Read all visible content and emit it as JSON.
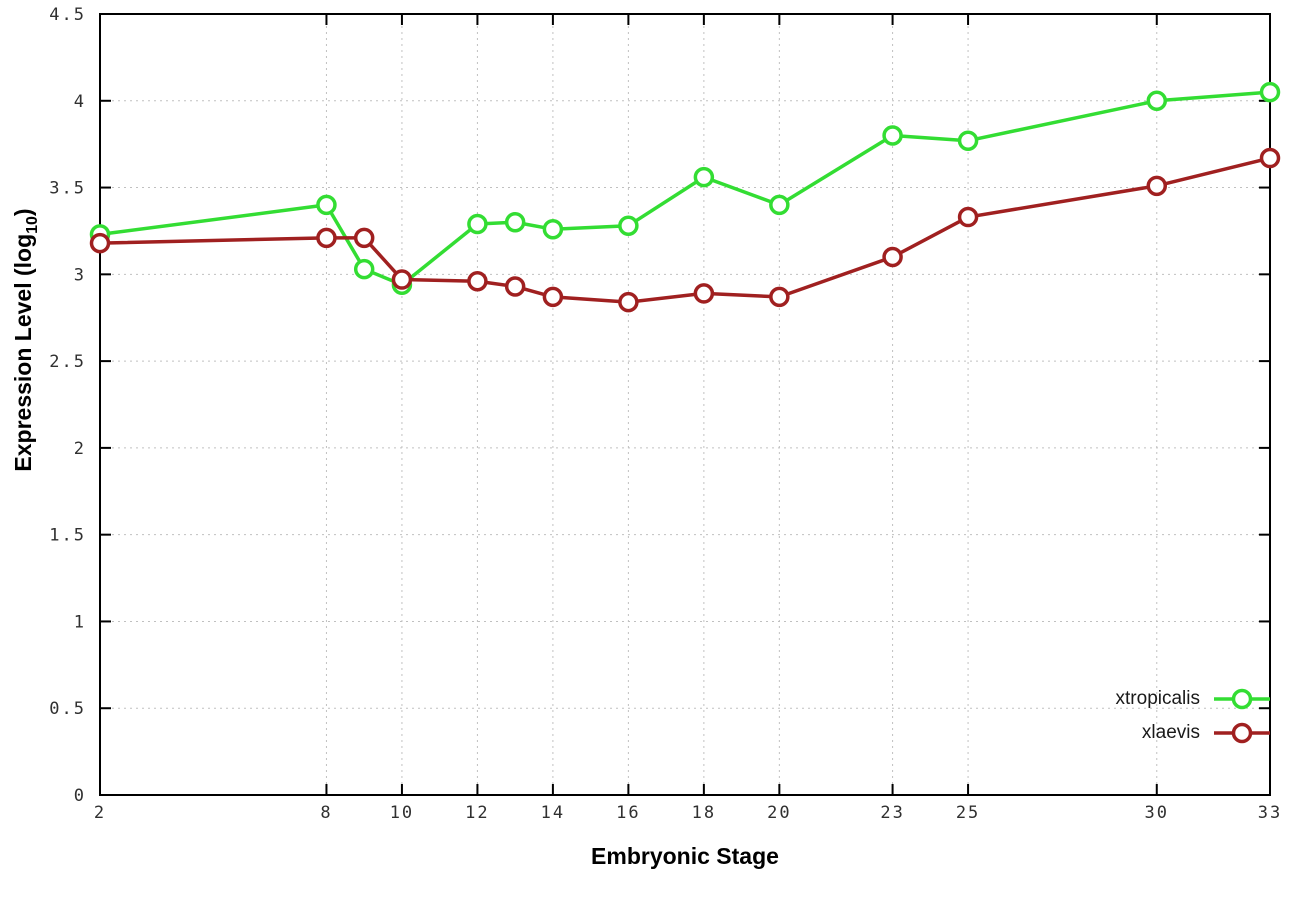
{
  "chart_data": {
    "type": "line",
    "title": "",
    "xlabel": "Embryonic Stage",
    "ylabel": "Expression Level (log10)",
    "ylabel_parts": {
      "main": "Expression Level (log",
      "sub": "10",
      "close": ")"
    },
    "x": [
      2,
      8,
      9,
      10,
      12,
      13,
      14,
      16,
      18,
      20,
      23,
      25,
      30,
      33
    ],
    "series": [
      {
        "name": "xtropicalis",
        "color": "#33dd33",
        "values": [
          3.23,
          3.4,
          3.03,
          2.94,
          3.29,
          3.3,
          3.26,
          3.28,
          3.56,
          3.4,
          3.8,
          3.77,
          4.0,
          4.05
        ]
      },
      {
        "name": "xlaevis",
        "color": "#a02020",
        "values": [
          3.18,
          3.21,
          3.21,
          2.97,
          2.96,
          2.93,
          2.87,
          2.84,
          2.89,
          2.87,
          3.1,
          3.33,
          3.51,
          3.67
        ]
      }
    ],
    "xlim": [
      2,
      33
    ],
    "ylim": [
      0,
      4.5
    ],
    "xticks": [
      2,
      8,
      10,
      12,
      14,
      16,
      18,
      20,
      23,
      25,
      30,
      33
    ],
    "ytick_step": 0.5,
    "grid": true,
    "legend_position": "bottom-right",
    "marker": "open-circle",
    "background_color": "#ffffff"
  }
}
